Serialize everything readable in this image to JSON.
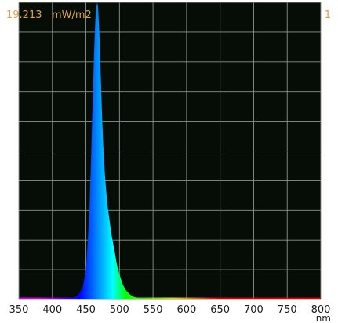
{
  "readout": {
    "value": "19.213",
    "unit": "mW/m2",
    "scale_max": "1"
  },
  "colors": {
    "background": "#060c06",
    "grid": "#8c938c",
    "readout_text": "#e0a23a"
  },
  "chart_data": {
    "type": "area",
    "title": "",
    "xlabel": "nm",
    "ylabel": "",
    "xlim": [
      350,
      800
    ],
    "ylim": [
      0,
      1
    ],
    "x_ticks": [
      "350",
      "400",
      "450",
      "500",
      "550",
      "600",
      "650",
      "700",
      "750",
      "800"
    ],
    "grid": true,
    "fill": "spectral wavelength colours",
    "series": [
      {
        "x": [
          350,
          380,
          400,
          420,
          430,
          435,
          440,
          445,
          450,
          455,
          458,
          460,
          462,
          464,
          466,
          467,
          468,
          470,
          472,
          474,
          476,
          478,
          480,
          482,
          485,
          488,
          490,
          493,
          496,
          500,
          505,
          510,
          515,
          520,
          530,
          540,
          550,
          600,
          650,
          700,
          750,
          800
        ],
        "y": [
          0.0,
          0.0,
          0.0,
          0.002,
          0.005,
          0.01,
          0.02,
          0.04,
          0.1,
          0.28,
          0.5,
          0.66,
          0.82,
          0.94,
          0.99,
          1.0,
          0.985,
          0.9,
          0.76,
          0.62,
          0.51,
          0.43,
          0.37,
          0.32,
          0.27,
          0.22,
          0.195,
          0.16,
          0.12,
          0.085,
          0.05,
          0.03,
          0.018,
          0.01,
          0.004,
          0.002,
          0.001,
          0.0,
          0.0,
          0.0,
          0.0,
          0.0
        ]
      }
    ]
  }
}
